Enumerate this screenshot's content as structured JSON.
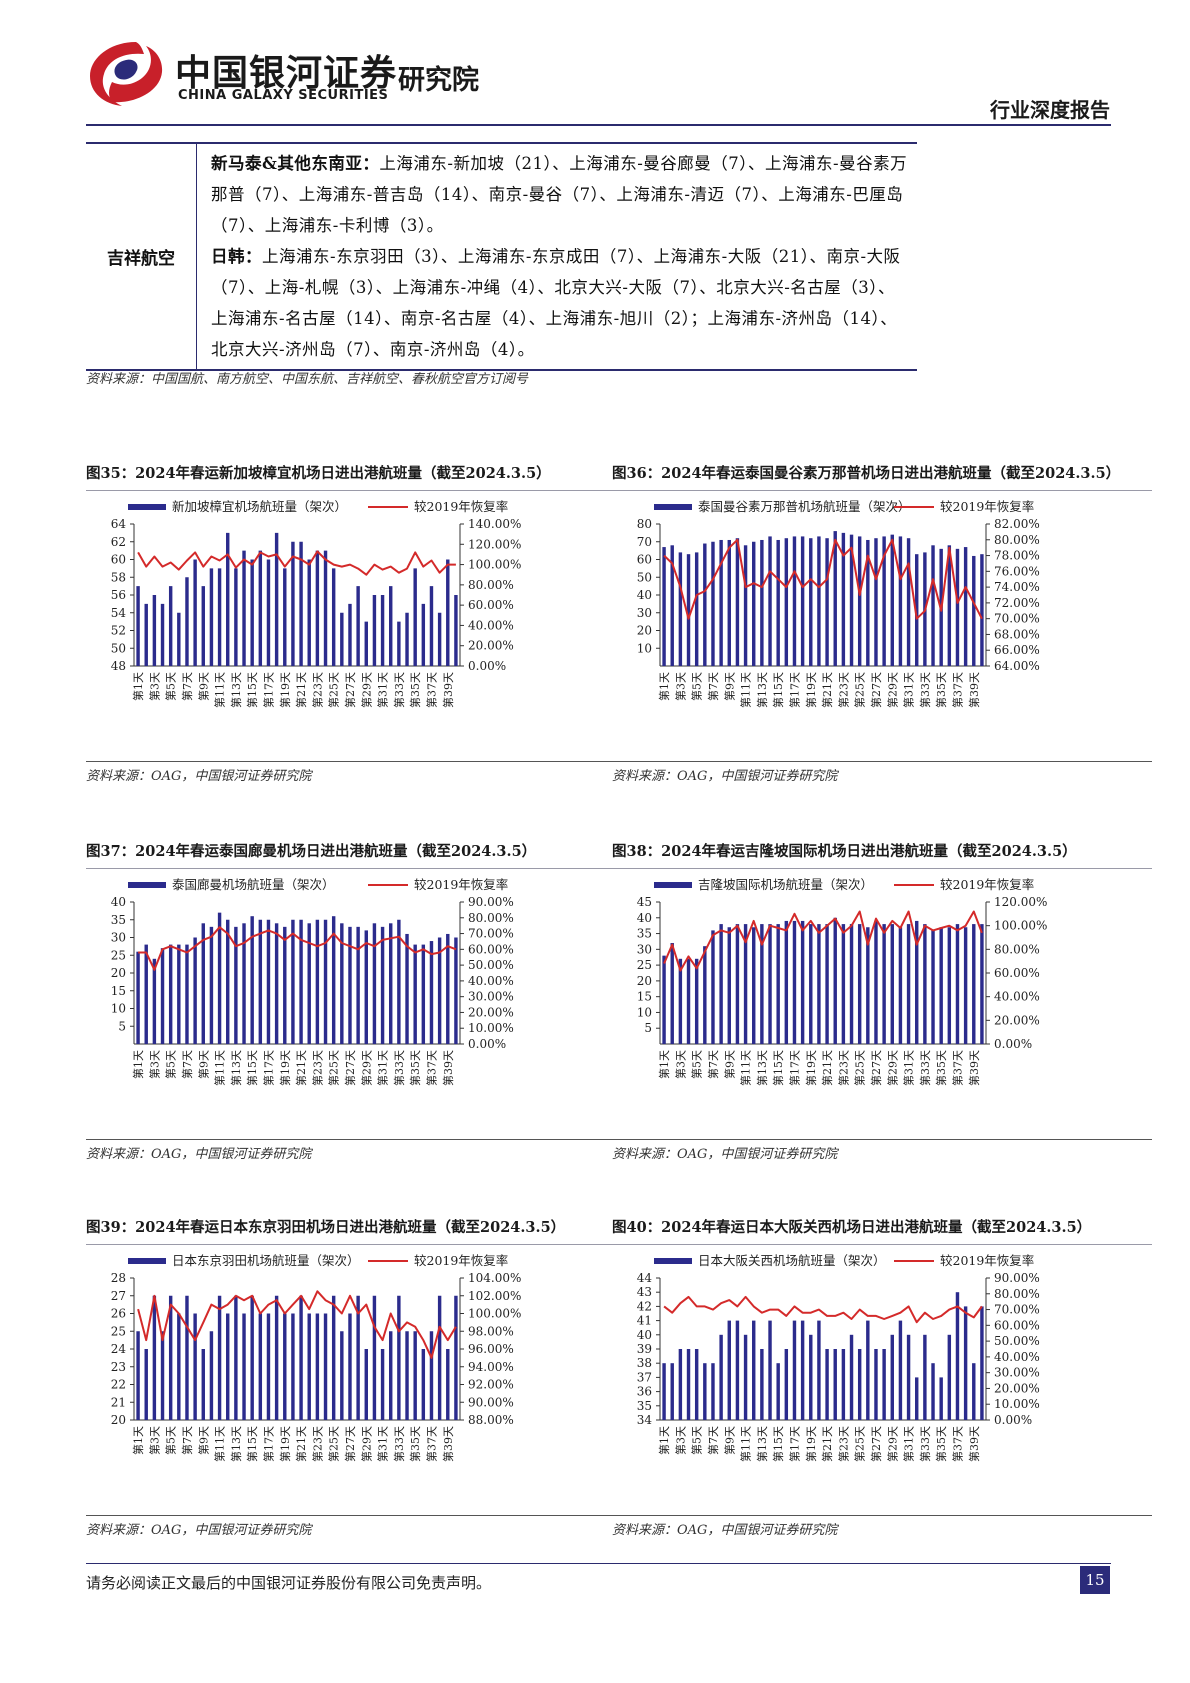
{
  "header": {
    "brand_cn": "中国银河证券",
    "brand_en": "CHINA GALAXY SECURITIES",
    "institute": "研究院",
    "report_type": "行业深度报告"
  },
  "route_table": {
    "airline": "吉祥航空",
    "groups": [
      {
        "region": "新马泰&其他东南亚：",
        "routes": "上海浦东-新加坡（21）、上海浦东-曼谷廊曼（7）、上海浦东-曼谷素万那普（7）、上海浦东-普吉岛（14）、南京-曼谷（7）、上海浦东-清迈（7）、上海浦东-巴厘岛（7）、上海浦东-卡利博（3）。"
      },
      {
        "region": "日韩：",
        "routes": "上海浦东-东京羽田（3）、上海浦东-东京成田（7）、上海浦东-大阪（21）、南京-大阪（7）、上海-札幌（3）、上海浦东-冲绳（4）、北京大兴-大阪（7）、北京大兴-名古屋（3）、上海浦东-名古屋（14）、南京-名古屋（4）、上海浦东-旭川（2）；上海浦东-济州岛（14）、北京大兴-济州岛（7）、南京-济州岛（4）。"
      }
    ],
    "source": "资料来源：中国国航、南方航空、中国东航、吉祥航空、春秋航空官方订阅号"
  },
  "colors": {
    "bar": "#2b2b8c",
    "line": "#d42a2a",
    "rule": "#2b2b6e"
  },
  "footer": {
    "note": "请务必阅读正文最后的中国银河证券股份有限公司免责声明。",
    "page": "15"
  },
  "chart_data": [
    {
      "type": "bar",
      "figure_label": "图35：2024年春运新加坡樟宜机场日进出港航班量（截至2024.3.5）",
      "legend_bar": "新加坡樟宜机场航班量（架次）",
      "legend_line": "较2019年恢复率",
      "source": "资料来源：OAG，中国银河证券研究院",
      "left_ylim": [
        48,
        64
      ],
      "left_ticks": [
        48,
        50,
        52,
        54,
        56,
        58,
        60,
        62,
        64
      ],
      "left_tick_labels": [
        "48",
        "50",
        "52",
        "54",
        "56",
        "58",
        "60",
        "62",
        "64"
      ],
      "right_ylim": [
        0,
        1.4
      ],
      "right_ticks": [
        0,
        0.2,
        0.4,
        0.6,
        0.8,
        1.0,
        1.2,
        1.4
      ],
      "right_tick_labels": [
        "0.00%",
        "20.00%",
        "40.00%",
        "60.00%",
        "80.00%",
        "100.00%",
        "120.00%",
        "140.00%"
      ],
      "x_labels": [
        "第1天",
        "第3天",
        "第5天",
        "第7天",
        "第9天",
        "第11天",
        "第13天",
        "第15天",
        "第17天",
        "第19天",
        "第21天",
        "第23天",
        "第25天",
        "第27天",
        "第29天",
        "第31天",
        "第33天",
        "第35天",
        "第37天",
        "第39天"
      ],
      "bars": [
        57,
        55,
        56,
        55,
        57,
        54,
        58,
        60,
        57,
        59,
        59,
        63,
        59,
        61,
        60,
        61,
        60,
        63,
        59,
        62,
        62,
        60,
        61,
        61,
        59,
        54,
        55,
        57,
        53,
        56,
        56,
        57,
        53,
        54,
        59,
        55,
        57,
        54,
        60,
        56
      ],
      "line": [
        1.12,
        0.98,
        1.08,
        0.98,
        1.02,
        0.95,
        1.04,
        1.12,
        0.98,
        1.08,
        1.04,
        1.1,
        0.97,
        1.05,
        1.0,
        1.12,
        1.08,
        1.1,
        0.98,
        1.08,
        1.05,
        1.0,
        1.13,
        1.05,
        1.0,
        0.98,
        1.0,
        0.96,
        0.9,
        1.0,
        0.95,
        0.98,
        0.92,
        0.96,
        1.12,
        0.98,
        1.04,
        0.92,
        1.0,
        1.0
      ]
    },
    {
      "type": "bar",
      "figure_label": "图36：2024年春运泰国曼谷素万那普机场日进出港航班量（截至2024.3.5）",
      "legend_bar": "泰国曼谷素万那普机场航班量（架次）",
      "legend_line": "较2019年恢复率",
      "source": "资料来源：OAG，中国银河证券研究院",
      "left_ylim": [
        0,
        80
      ],
      "left_ticks": [
        10,
        20,
        30,
        40,
        50,
        60,
        70,
        80
      ],
      "left_tick_labels": [
        "10",
        "20",
        "30",
        "40",
        "50",
        "60",
        "70",
        "80"
      ],
      "right_ylim": [
        0.64,
        0.82
      ],
      "right_ticks": [
        0.64,
        0.66,
        0.68,
        0.7,
        0.72,
        0.74,
        0.76,
        0.78,
        0.8,
        0.82
      ],
      "right_tick_labels": [
        "64.00%",
        "66.00%",
        "68.00%",
        "70.00%",
        "72.00%",
        "74.00%",
        "76.00%",
        "78.00%",
        "80.00%",
        "82.00%"
      ],
      "x_labels": [
        "第1天",
        "第3天",
        "第5天",
        "第7天",
        "第9天",
        "第11天",
        "第13天",
        "第15天",
        "第17天",
        "第19天",
        "第21天",
        "第23天",
        "第25天",
        "第27天",
        "第29天",
        "第31天",
        "第33天",
        "第35天",
        "第37天",
        "第39天"
      ],
      "bars": [
        67,
        68,
        64,
        63,
        64,
        69,
        70,
        71,
        71,
        72,
        68,
        70,
        71,
        73,
        71,
        72,
        73,
        73,
        72,
        73,
        72,
        76,
        75,
        74,
        73,
        71,
        72,
        73,
        74,
        73,
        72,
        63,
        64,
        68,
        66,
        68,
        66,
        67,
        62,
        63
      ],
      "line": [
        0.78,
        0.77,
        0.74,
        0.7,
        0.73,
        0.735,
        0.75,
        0.77,
        0.79,
        0.8,
        0.74,
        0.745,
        0.74,
        0.76,
        0.75,
        0.74,
        0.76,
        0.74,
        0.75,
        0.74,
        0.75,
        0.8,
        0.78,
        0.79,
        0.73,
        0.78,
        0.75,
        0.78,
        0.8,
        0.75,
        0.77,
        0.7,
        0.71,
        0.75,
        0.71,
        0.79,
        0.72,
        0.74,
        0.72,
        0.7
      ]
    },
    {
      "type": "bar",
      "figure_label": "图37：2024年春运泰国廊曼机场日进出港航班量（截至2024.3.5）",
      "legend_bar": "泰国廊曼机场航班量（架次）",
      "legend_line": "较2019年恢复率",
      "source": "资料来源：OAG，中国银河证券研究院",
      "left_ylim": [
        0,
        40
      ],
      "left_ticks": [
        5,
        10,
        15,
        20,
        25,
        30,
        35,
        40
      ],
      "left_tick_labels": [
        "5",
        "10",
        "15",
        "20",
        "25",
        "30",
        "35",
        "40"
      ],
      "right_ylim": [
        0,
        0.9
      ],
      "right_ticks": [
        0,
        0.1,
        0.2,
        0.3,
        0.4,
        0.5,
        0.6,
        0.7,
        0.8,
        0.9
      ],
      "right_tick_labels": [
        "0.00%",
        "10.00%",
        "20.00%",
        "30.00%",
        "40.00%",
        "50.00%",
        "60.00%",
        "70.00%",
        "80.00%",
        "90.00%"
      ],
      "x_labels": [
        "第1天",
        "第3天",
        "第5天",
        "第7天",
        "第9天",
        "第11天",
        "第13天",
        "第15天",
        "第17天",
        "第19天",
        "第21天",
        "第23天",
        "第25天",
        "第27天",
        "第29天",
        "第31天",
        "第33天",
        "第35天",
        "第37天",
        "第39天"
      ],
      "bars": [
        26,
        28,
        24,
        27,
        28,
        28,
        28,
        30,
        34,
        33,
        37,
        35,
        33,
        34,
        36,
        35,
        35,
        34,
        33,
        35,
        35,
        34,
        35,
        35,
        36,
        34,
        33,
        33,
        32,
        34,
        33,
        34,
        35,
        31,
        28,
        28,
        29,
        30,
        31,
        30
      ],
      "line": [
        0.58,
        0.58,
        0.47,
        0.6,
        0.62,
        0.6,
        0.58,
        0.62,
        0.66,
        0.68,
        0.74,
        0.7,
        0.62,
        0.64,
        0.68,
        0.7,
        0.72,
        0.7,
        0.66,
        0.7,
        0.66,
        0.64,
        0.62,
        0.64,
        0.7,
        0.64,
        0.62,
        0.6,
        0.64,
        0.62,
        0.66,
        0.67,
        0.68,
        0.62,
        0.58,
        0.6,
        0.57,
        0.58,
        0.62,
        0.6
      ]
    },
    {
      "type": "bar",
      "figure_label": "图38：2024年春运吉隆坡国际机场日进出港航班量（截至2024.3.5）",
      "legend_bar": "吉隆坡国际机场航班量（架次）",
      "legend_line": "较2019年恢复率",
      "source": "资料来源：OAG，中国银河证券研究院",
      "left_ylim": [
        0,
        45
      ],
      "left_ticks": [
        5,
        10,
        15,
        20,
        25,
        30,
        35,
        40,
        45
      ],
      "left_tick_labels": [
        "5",
        "10",
        "15",
        "20",
        "25",
        "30",
        "35",
        "40",
        "45"
      ],
      "right_ylim": [
        0,
        1.2
      ],
      "right_ticks": [
        0,
        0.2,
        0.4,
        0.6,
        0.8,
        1.0,
        1.2
      ],
      "right_tick_labels": [
        "0.00%",
        "20.00%",
        "40.00%",
        "60.00%",
        "80.00%",
        "100.00%",
        "120.00%"
      ],
      "x_labels": [
        "第1天",
        "第3天",
        "第5天",
        "第7天",
        "第9天",
        "第11天",
        "第13天",
        "第15天",
        "第17天",
        "第19天",
        "第21天",
        "第23天",
        "第25天",
        "第27天",
        "第29天",
        "第31天",
        "第33天",
        "第35天",
        "第37天",
        "第39天"
      ],
      "bars": [
        28,
        32,
        27,
        27,
        27,
        31,
        36,
        38,
        37,
        38,
        38,
        37,
        38,
        38,
        38,
        39,
        39,
        39,
        38,
        38,
        38,
        40,
        38,
        38,
        38,
        37,
        39,
        38,
        38,
        37,
        38,
        39,
        38,
        36,
        37,
        37,
        38,
        37,
        38,
        38
      ],
      "line": [
        0.68,
        0.84,
        0.62,
        0.74,
        0.64,
        0.78,
        0.92,
        0.96,
        0.94,
        1.0,
        0.86,
        1.04,
        0.84,
        1.0,
        0.98,
        0.96,
        1.1,
        0.96,
        1.04,
        0.94,
        1.0,
        1.06,
        0.94,
        1.0,
        1.12,
        0.84,
        1.06,
        0.94,
        1.04,
        0.98,
        1.12,
        0.84,
        1.0,
        0.96,
        0.98,
        1.0,
        0.96,
        1.0,
        1.12,
        0.94
      ]
    },
    {
      "type": "bar",
      "figure_label": "图39：2024年春运日本东京羽田机场日进出港航班量（截至2024.3.5）",
      "legend_bar": "日本东京羽田机场航班量（架次）",
      "legend_line": "较2019年恢复率",
      "source": "资料来源：OAG，中国银河证券研究院",
      "left_ylim": [
        20,
        28
      ],
      "left_ticks": [
        20,
        21,
        22,
        23,
        24,
        25,
        26,
        27,
        28
      ],
      "left_tick_labels": [
        "20",
        "21",
        "22",
        "23",
        "24",
        "25",
        "26",
        "27",
        "28"
      ],
      "right_ylim": [
        0.88,
        1.04
      ],
      "right_ticks": [
        0.88,
        0.9,
        0.92,
        0.94,
        0.96,
        0.98,
        1.0,
        1.02,
        1.04
      ],
      "right_tick_labels": [
        "88.00%",
        "90.00%",
        "92.00%",
        "94.00%",
        "96.00%",
        "98.00%",
        "100.00%",
        "102.00%",
        "104.00%"
      ],
      "x_labels": [
        "第1天",
        "第3天",
        "第5天",
        "第7天",
        "第9天",
        "第11天",
        "第13天",
        "第15天",
        "第17天",
        "第19天",
        "第21天",
        "第23天",
        "第25天",
        "第27天",
        "第29天",
        "第31天",
        "第33天",
        "第35天",
        "第37天",
        "第39天"
      ],
      "bars": [
        25,
        24,
        27,
        25,
        27,
        26,
        27,
        26,
        24,
        25,
        27,
        26,
        27,
        26,
        27,
        26,
        26,
        27,
        26,
        26,
        27,
        26,
        26,
        26,
        27,
        25,
        26,
        27,
        24,
        27,
        24,
        25,
        27,
        25,
        25,
        24,
        25,
        27,
        24,
        27
      ],
      "line": [
        1.005,
        0.97,
        1.02,
        0.97,
        1.01,
        1.0,
        0.985,
        0.97,
        0.99,
        1.01,
        1.005,
        1.01,
        1.02,
        1.015,
        1.02,
        1.0,
        1.01,
        1.015,
        1.0,
        1.01,
        1.02,
        1.005,
        1.025,
        1.015,
        1.01,
        1.0,
        1.02,
        1.0,
        1.01,
        0.985,
        0.97,
        1.0,
        0.98,
        0.99,
        0.985,
        0.97,
        0.95,
        0.985,
        0.97,
        0.985
      ]
    },
    {
      "type": "bar",
      "figure_label": "图40：2024年春运日本大阪关西机场日进出港航班量（截至2024.3.5）",
      "legend_bar": "日本大阪关西机场航班量（架次）",
      "legend_line": "较2019年恢复率",
      "source": "资料来源：OAG，中国银河证券研究院",
      "left_ylim": [
        34,
        44
      ],
      "left_ticks": [
        34,
        35,
        36,
        37,
        38,
        39,
        40,
        41,
        42,
        43,
        44
      ],
      "left_tick_labels": [
        "34",
        "35",
        "36",
        "37",
        "38",
        "39",
        "40",
        "41",
        "42",
        "43",
        "44"
      ],
      "right_ylim": [
        0,
        0.9
      ],
      "right_ticks": [
        0,
        0.1,
        0.2,
        0.3,
        0.4,
        0.5,
        0.6,
        0.7,
        0.8,
        0.9
      ],
      "right_tick_labels": [
        "0.00%",
        "10.00%",
        "20.00%",
        "30.00%",
        "40.00%",
        "50.00%",
        "60.00%",
        "70.00%",
        "80.00%",
        "90.00%"
      ],
      "x_labels": [
        "第1天",
        "第3天",
        "第5天",
        "第7天",
        "第9天",
        "第11天",
        "第13天",
        "第15天",
        "第17天",
        "第19天",
        "第21天",
        "第23天",
        "第25天",
        "第27天",
        "第29天",
        "第31天",
        "第33天",
        "第35天",
        "第37天",
        "第39天"
      ],
      "bars": [
        38,
        38,
        39,
        39,
        39,
        38,
        38,
        40,
        41,
        41,
        40,
        41,
        39,
        41,
        38,
        39,
        41,
        41,
        40,
        41,
        39,
        39,
        39,
        40,
        39,
        41,
        39,
        39,
        40,
        41,
        40,
        37,
        40,
        38,
        37,
        40,
        43,
        42,
        38,
        42
      ],
      "line": [
        0.72,
        0.68,
        0.74,
        0.78,
        0.72,
        0.72,
        0.7,
        0.74,
        0.76,
        0.72,
        0.78,
        0.72,
        0.68,
        0.7,
        0.7,
        0.66,
        0.72,
        0.68,
        0.68,
        0.7,
        0.66,
        0.66,
        0.68,
        0.64,
        0.7,
        0.66,
        0.66,
        0.64,
        0.66,
        0.68,
        0.72,
        0.62,
        0.68,
        0.64,
        0.66,
        0.7,
        0.72,
        0.68,
        0.65,
        0.72
      ]
    }
  ]
}
